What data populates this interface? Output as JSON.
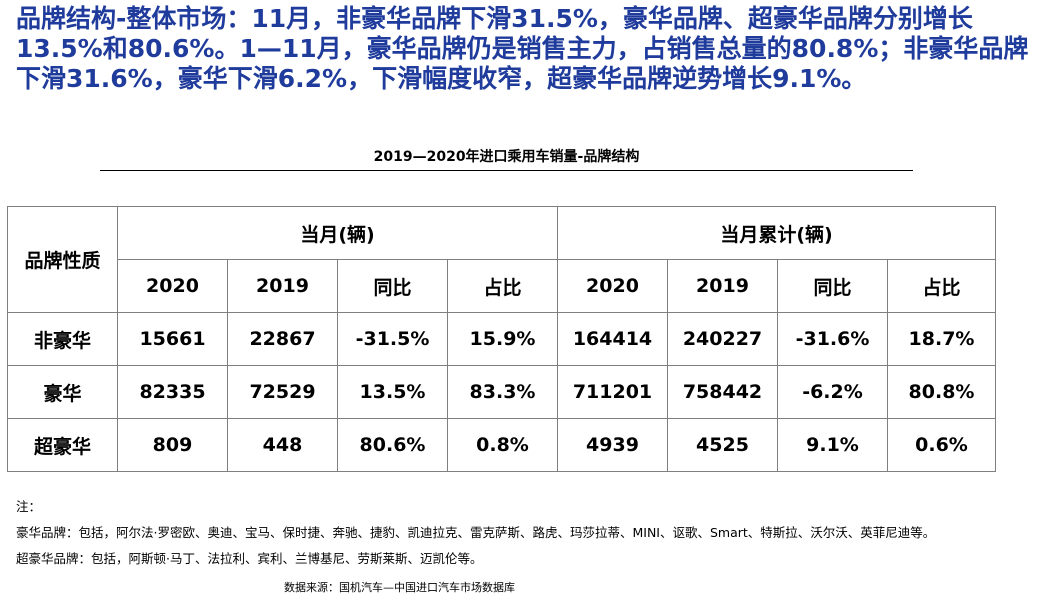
{
  "headline": "品牌结构-整体市场：11月，非豪华品牌下滑31.5%，豪华品牌、超豪华品牌分别增长13.5%和80.6%。1—11月，豪华品牌仍是销售主力，占销售总量的80.8%；非豪华品牌下滑31.6%，豪华下滑6.2%，下滑幅度收窄，超豪华品牌逆势增长9.1%。",
  "table_title": "2019—2020年进口乘用车销量-品牌结构",
  "table": {
    "corner": "品牌性质",
    "group_month": "当月(辆)",
    "group_cumulative": "当月累计(辆)",
    "subheaders": [
      "2020",
      "2019",
      "同比",
      "占比",
      "2020",
      "2019",
      "同比",
      "占比"
    ],
    "rows": [
      {
        "label": "非豪华",
        "cells": [
          "15661",
          "22867",
          "-31.5%",
          "15.9%",
          "164414",
          "240227",
          "-31.6%",
          "18.7%"
        ]
      },
      {
        "label": "豪华",
        "cells": [
          "82335",
          "72529",
          "13.5%",
          "83.3%",
          "711201",
          "758442",
          "-6.2%",
          "80.8%"
        ]
      },
      {
        "label": "超豪华",
        "cells": [
          "809",
          "448",
          "80.6%",
          "0.8%",
          "4939",
          "4525",
          "9.1%",
          "0.6%"
        ]
      }
    ]
  },
  "notes": {
    "label": "注：",
    "luxury": "豪华品牌：包括，阿尔法·罗密欧、奥迪、宝马、保时捷、奔驰、捷豹、凯迪拉克、雷克萨斯、路虎、玛莎拉蒂、MINI、讴歌、Smart、特斯拉、沃尔沃、英菲尼迪等。",
    "super_luxury": "超豪华品牌：包括，阿斯顿·马丁、法拉利、宾利、兰博基尼、劳斯莱斯、迈凯伦等。"
  },
  "source": "数据来源：国机汽车—中国进口汽车市场数据库"
}
